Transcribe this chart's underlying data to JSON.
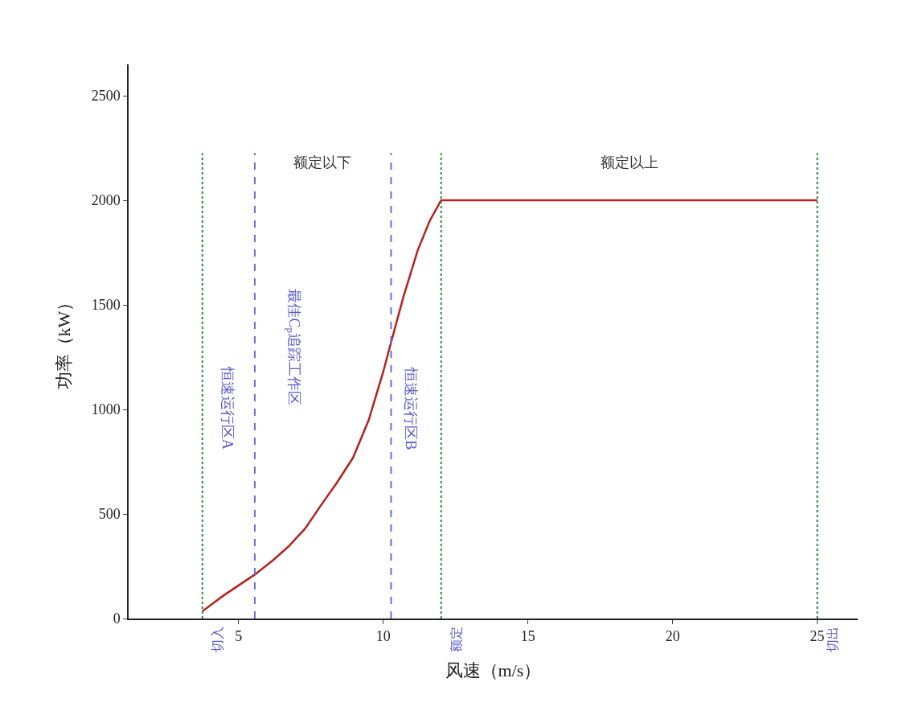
{
  "chart_data": {
    "type": "line",
    "xlabel": "风速（m/s）",
    "ylabel": "功率（kW）",
    "xlim": [
      1.2,
      26.4
    ],
    "ylim": [
      0,
      2650
    ],
    "xticks": [
      5,
      10,
      15,
      20,
      25
    ],
    "yticks": [
      0,
      500,
      1000,
      1500,
      2000,
      2500
    ],
    "marker": "none",
    "line_style": "solid",
    "series": [
      {
        "color": "#b3231f",
        "x": [
          3.75,
          4.5,
          5.56,
          6.2,
          6.73,
          7.3,
          7.84,
          8.4,
          8.96,
          9.5,
          10.0,
          10.27,
          10.7,
          11.19,
          11.6,
          12,
          25
        ],
        "values": [
          35,
          112,
          210,
          280,
          345,
          430,
          540,
          650,
          770,
          950,
          1180,
          1320,
          1540,
          1760,
          1900,
          2000,
          2000
        ]
      }
    ],
    "ref_lines": [
      {
        "axis": "x",
        "value": 3.75,
        "label": "切入",
        "color": "#2e8b3a",
        "line_style": "dotted"
      },
      {
        "axis": "x",
        "value": 12,
        "label": "额定",
        "color": "#2e8b3a",
        "line_style": "dotted"
      },
      {
        "axis": "x",
        "value": 25,
        "label": "切出",
        "color": "#2e8b3a",
        "line_style": "dotted"
      },
      {
        "axis": "x",
        "value": 5.56,
        "color": "#6b6bdc",
        "line_style": "dashed"
      },
      {
        "axis": "x",
        "value": 10.27,
        "color": "#6b6bdc",
        "line_style": "dashed"
      }
    ],
    "annotations": [
      "额定以下",
      "额定以上",
      "恒速运行区A",
      "最佳C$_{p}$追踪工作区",
      "恒速运行区B"
    ]
  }
}
